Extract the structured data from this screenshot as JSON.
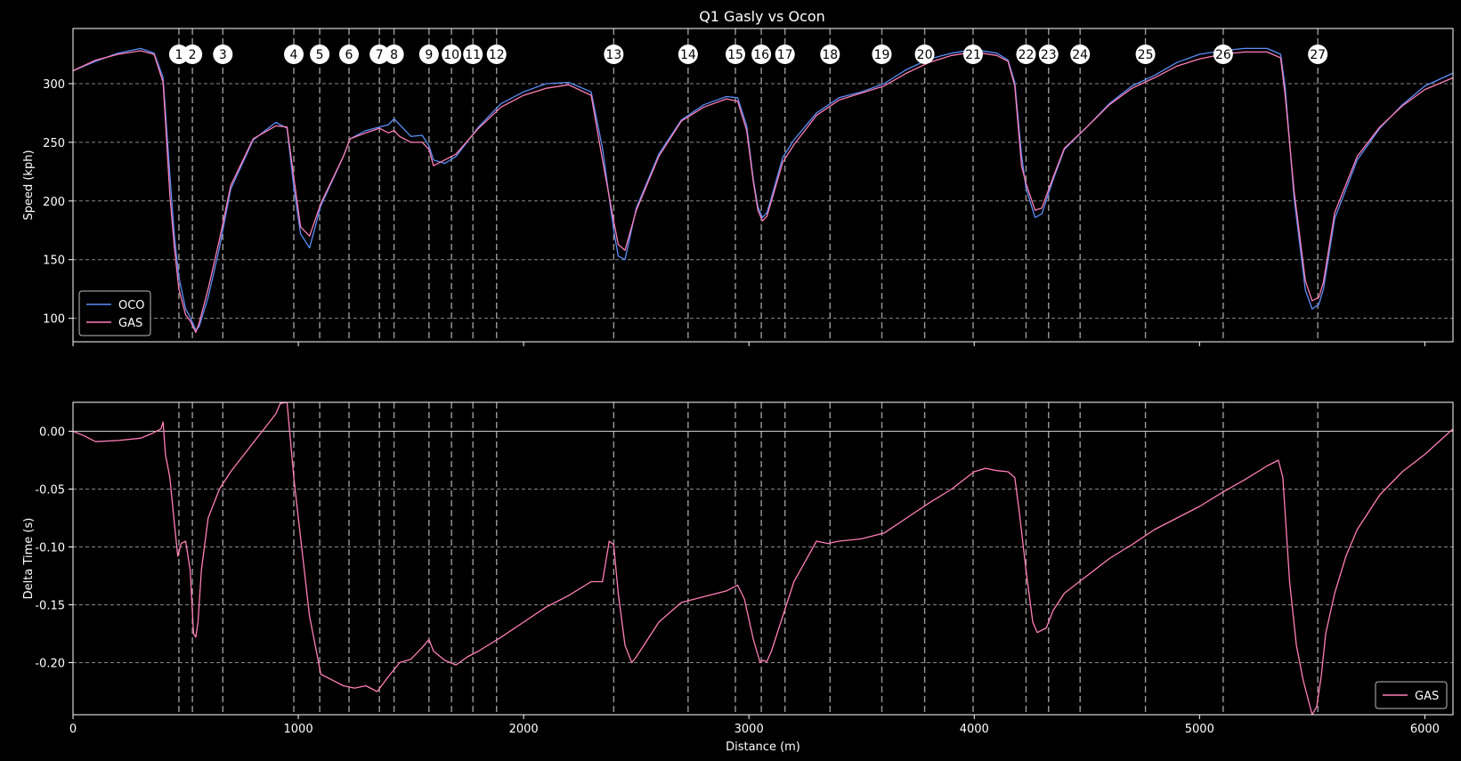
{
  "title": "Q1 Gasly vs Ocon",
  "colors": {
    "oco": "#5b8ff9",
    "gas": "#ff7eb6",
    "background": "#000000",
    "axes": "#ffffff",
    "grid": "#888888"
  },
  "corners": {
    "labels": [
      "1",
      "2",
      "3",
      "4",
      "5",
      "6",
      "7",
      "8",
      "9",
      "10",
      "11",
      "12",
      "13",
      "14",
      "15",
      "16",
      "17",
      "18",
      "19",
      "20",
      "21",
      "22",
      "23",
      "24",
      "25",
      "26",
      "27"
    ],
    "distance": [
      470,
      530,
      665,
      980,
      1095,
      1225,
      1360,
      1425,
      1580,
      1680,
      1775,
      1880,
      2400,
      2730,
      2940,
      3055,
      3160,
      3360,
      3590,
      3780,
      3995,
      4230,
      4330,
      4470,
      4760,
      5105,
      5525
    ]
  },
  "chart_data": [
    {
      "type": "line",
      "ylabel": "Speed (kph)",
      "xlim": [
        0,
        6125
      ],
      "ylim": [
        80,
        347
      ],
      "xticks": [
        0,
        1000,
        2000,
        3000,
        4000,
        5000,
        6000
      ],
      "yticks": [
        100,
        150,
        200,
        250,
        300
      ],
      "grid": "horizontal",
      "legend_position": "bottom-left",
      "series": [
        {
          "name": "OCO",
          "x": [
            0,
            100,
            200,
            300,
            360,
            400,
            430,
            450,
            470,
            500,
            520,
            545,
            560,
            600,
            650,
            700,
            800,
            900,
            950,
            980,
            1010,
            1050,
            1100,
            1200,
            1230,
            1300,
            1360,
            1400,
            1425,
            1450,
            1500,
            1550,
            1580,
            1600,
            1650,
            1700,
            1800,
            1900,
            2000,
            2100,
            2200,
            2300,
            2350,
            2400,
            2420,
            2450,
            2500,
            2600,
            2700,
            2800,
            2900,
            2950,
            2990,
            3020,
            3040,
            3060,
            3080,
            3100,
            3150,
            3200,
            3300,
            3400,
            3500,
            3600,
            3700,
            3800,
            3900,
            4000,
            4100,
            4150,
            4180,
            4210,
            4230,
            4270,
            4300,
            4350,
            4400,
            4500,
            4600,
            4700,
            4800,
            4900,
            5000,
            5100,
            5200,
            5300,
            5360,
            5380,
            5420,
            5470,
            5500,
            5530,
            5550,
            5600,
            5700,
            5800,
            5900,
            6000,
            6125
          ],
          "y": [
            311,
            319,
            326,
            330,
            326,
            305,
            222,
            170,
            135,
            108,
            101,
            90,
            93,
            118,
            160,
            210,
            252,
            267,
            262,
            212,
            172,
            160,
            196,
            238,
            253,
            260,
            263,
            265,
            270,
            265,
            255,
            256,
            247,
            235,
            232,
            238,
            263,
            283,
            293,
            300,
            301,
            293,
            245,
            175,
            153,
            150,
            194,
            240,
            269,
            282,
            289,
            288,
            264,
            218,
            195,
            186,
            190,
            203,
            237,
            252,
            275,
            288,
            293,
            300,
            312,
            321,
            326,
            329,
            326,
            320,
            301,
            239,
            211,
            186,
            189,
            218,
            244,
            263,
            283,
            298,
            307,
            318,
            325,
            328,
            330,
            330,
            325,
            297,
            202,
            124,
            108,
            112,
            125,
            185,
            235,
            262,
            282,
            298,
            309
          ]
        },
        {
          "name": "GAS",
          "x": [
            0,
            100,
            200,
            300,
            360,
            400,
            430,
            450,
            470,
            500,
            520,
            545,
            560,
            600,
            650,
            700,
            800,
            900,
            950,
            980,
            1010,
            1050,
            1100,
            1200,
            1230,
            1300,
            1360,
            1400,
            1425,
            1450,
            1500,
            1550,
            1580,
            1600,
            1650,
            1700,
            1800,
            1900,
            2000,
            2100,
            2200,
            2300,
            2350,
            2400,
            2420,
            2450,
            2500,
            2600,
            2700,
            2800,
            2900,
            2950,
            2990,
            3020,
            3040,
            3060,
            3080,
            3100,
            3150,
            3200,
            3300,
            3400,
            3500,
            3600,
            3700,
            3800,
            3900,
            4000,
            4100,
            4150,
            4180,
            4210,
            4230,
            4270,
            4300,
            4350,
            4400,
            4500,
            4600,
            4700,
            4800,
            4900,
            5000,
            5100,
            5200,
            5300,
            5360,
            5380,
            5420,
            5470,
            5500,
            5530,
            5550,
            5600,
            5700,
            5800,
            5900,
            6000,
            6125
          ],
          "y": [
            311,
            320,
            325,
            328,
            325,
            301,
            205,
            160,
            125,
            103,
            98,
            88,
            96,
            125,
            167,
            213,
            253,
            264,
            263,
            220,
            178,
            170,
            198,
            238,
            253,
            258,
            262,
            258,
            260,
            255,
            250,
            250,
            244,
            230,
            235,
            240,
            262,
            280,
            290,
            296,
            299,
            290,
            235,
            183,
            163,
            158,
            192,
            238,
            268,
            280,
            287,
            285,
            260,
            216,
            192,
            183,
            187,
            200,
            233,
            248,
            273,
            286,
            292,
            298,
            309,
            318,
            324,
            327,
            324,
            319,
            298,
            230,
            215,
            192,
            194,
            220,
            245,
            263,
            282,
            296,
            305,
            315,
            321,
            325,
            327,
            327,
            322,
            290,
            208,
            132,
            115,
            118,
            131,
            190,
            238,
            263,
            281,
            295,
            305
          ]
        }
      ]
    },
    {
      "type": "line",
      "xlabel": "Distance (m)",
      "ylabel": "Delta Time (s)",
      "xlim": [
        0,
        6125
      ],
      "ylim": [
        -0.245,
        0.025
      ],
      "xticks": [
        0,
        1000,
        2000,
        3000,
        4000,
        5000,
        6000
      ],
      "yticks": [
        0.0,
        -0.05,
        -0.1,
        -0.15,
        -0.2
      ],
      "ytick_labels": [
        "0.00",
        "-0.05",
        "-0.10",
        "-0.15",
        "-0.20"
      ],
      "grid": "horizontal",
      "legend_position": "bottom-right",
      "series": [
        {
          "name": "GAS",
          "x": [
            0,
            50,
            100,
            200,
            300,
            350,
            390,
            400,
            410,
            430,
            450,
            465,
            480,
            500,
            520,
            535,
            545,
            555,
            570,
            600,
            650,
            700,
            800,
            900,
            920,
            950,
            980,
            1000,
            1050,
            1100,
            1200,
            1250,
            1300,
            1350,
            1400,
            1450,
            1500,
            1550,
            1580,
            1600,
            1650,
            1700,
            1750,
            1800,
            1900,
            2000,
            2100,
            2200,
            2300,
            2350,
            2380,
            2400,
            2420,
            2450,
            2480,
            2500,
            2600,
            2700,
            2800,
            2900,
            2950,
            2980,
            3020,
            3050,
            3060,
            3080,
            3100,
            3150,
            3200,
            3300,
            3350,
            3400,
            3500,
            3600,
            3700,
            3800,
            3900,
            4000,
            4050,
            4100,
            4150,
            4180,
            4200,
            4230,
            4260,
            4280,
            4320,
            4350,
            4400,
            4500,
            4600,
            4700,
            4800,
            4900,
            5000,
            5100,
            5200,
            5300,
            5350,
            5370,
            5400,
            5430,
            5460,
            5500,
            5520,
            5540,
            5560,
            5600,
            5650,
            5700,
            5800,
            5900,
            6000,
            6125
          ],
          "y": [
            0,
            -0.004,
            -0.009,
            -0.008,
            -0.006,
            -0.002,
            0.002,
            0.008,
            -0.02,
            -0.04,
            -0.08,
            -0.108,
            -0.097,
            -0.095,
            -0.12,
            -0.175,
            -0.178,
            -0.165,
            -0.12,
            -0.075,
            -0.05,
            -0.035,
            -0.01,
            0.015,
            0.024,
            0.025,
            -0.04,
            -0.075,
            -0.16,
            -0.21,
            -0.22,
            -0.222,
            -0.22,
            -0.225,
            -0.212,
            -0.2,
            -0.197,
            -0.187,
            -0.18,
            -0.19,
            -0.198,
            -0.202,
            -0.195,
            -0.19,
            -0.178,
            -0.165,
            -0.152,
            -0.142,
            -0.13,
            -0.13,
            -0.095,
            -0.098,
            -0.14,
            -0.185,
            -0.2,
            -0.195,
            -0.165,
            -0.148,
            -0.143,
            -0.138,
            -0.133,
            -0.145,
            -0.18,
            -0.2,
            -0.198,
            -0.199,
            -0.19,
            -0.16,
            -0.13,
            -0.095,
            -0.097,
            -0.095,
            -0.093,
            -0.088,
            -0.075,
            -0.062,
            -0.05,
            -0.035,
            -0.032,
            -0.034,
            -0.035,
            -0.04,
            -0.07,
            -0.12,
            -0.165,
            -0.174,
            -0.17,
            -0.155,
            -0.14,
            -0.125,
            -0.11,
            -0.098,
            -0.085,
            -0.075,
            -0.065,
            -0.053,
            -0.042,
            -0.03,
            -0.025,
            -0.04,
            -0.13,
            -0.185,
            -0.215,
            -0.245,
            -0.238,
            -0.212,
            -0.175,
            -0.14,
            -0.108,
            -0.085,
            -0.055,
            -0.035,
            -0.02,
            0.002
          ]
        }
      ]
    }
  ]
}
